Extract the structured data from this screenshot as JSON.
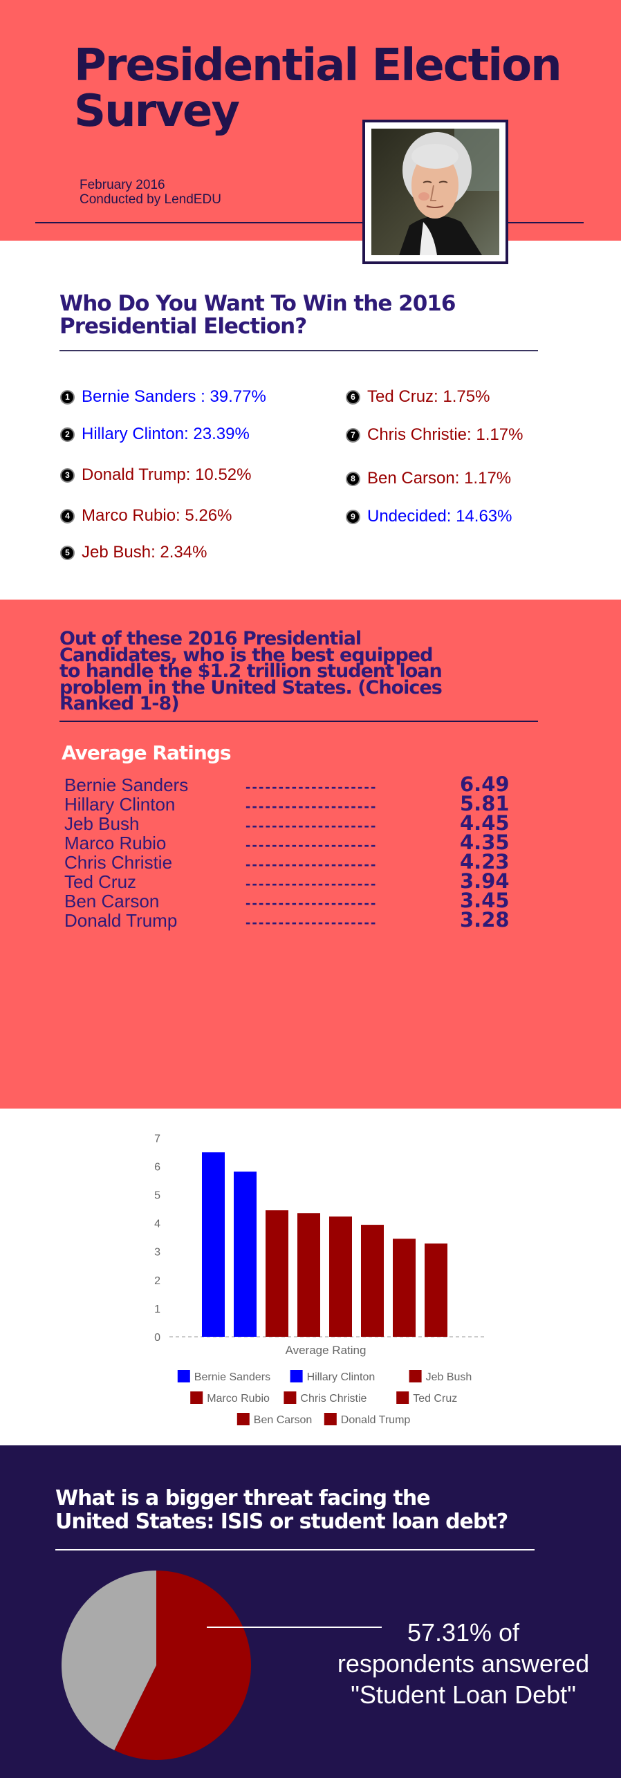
{
  "header": {
    "title_line1": "Presidential Election",
    "title_line2": "Survey",
    "date": "February 2016",
    "conducted_by": "Conducted by LendEDU"
  },
  "poll": {
    "question": "Who Do You Want To Win the 2016 Presidential Election?",
    "question_lines": [
      "Who Do You Want To Win the 2016",
      "Presidential Election?"
    ],
    "items": [
      {
        "n": "1",
        "text": "Bernie Sanders : 39.77%",
        "color": "#0000ff"
      },
      {
        "n": "2",
        "text": "Hillary Clinton: 23.39%",
        "color": "#0000ff"
      },
      {
        "n": "3",
        "text": "Donald Trump: 10.52%",
        "color": "#990000"
      },
      {
        "n": "4",
        "text": "Marco Rubio: 5.26%",
        "color": "#990000"
      },
      {
        "n": "5",
        "text": "Jeb Bush: 2.34%",
        "color": "#990000"
      },
      {
        "n": "6",
        "text": "Ted Cruz: 1.75%",
        "color": "#990000"
      },
      {
        "n": "7",
        "text": "Chris Christie: 1.17%",
        "color": "#990000"
      },
      {
        "n": "8",
        "text": "Ben Carson: 1.17%",
        "color": "#990000"
      },
      {
        "n": "9",
        "text": "Undecided: 14.63%",
        "color": "#0000ff"
      }
    ]
  },
  "ratings": {
    "question_lines": [
      "Out of these 2016 Presidential",
      "Candidates, who is the best equipped",
      "to handle the $1.2 trillion student loan",
      "problem in the United States. (Choices",
      "Ranked 1-8)"
    ],
    "heading": "Average Ratings",
    "leader": "--------------------",
    "rows": [
      {
        "name": "Bernie Sanders",
        "value": "6.49"
      },
      {
        "name": "Hillary Clinton",
        "value": "5.81"
      },
      {
        "name": "Jeb Bush",
        "value": "4.45"
      },
      {
        "name": "Marco Rubio",
        "value": "4.35"
      },
      {
        "name": "Chris Christie",
        "value": "4.23"
      },
      {
        "name": "Ted Cruz",
        "value": "3.94"
      },
      {
        "name": "Ben Carson",
        "value": "3.45"
      },
      {
        "name": "Donald Trump",
        "value": "3.28"
      }
    ]
  },
  "chart_data": [
    {
      "type": "bar",
      "xlabel": "Average Rating",
      "ylim": [
        0,
        7
      ],
      "yticks": [
        "0",
        "1",
        "2",
        "3",
        "4",
        "5",
        "6",
        "7"
      ],
      "grid": false,
      "legend": "bottom",
      "series": [
        {
          "name": "Bernie Sanders",
          "value": 6.49,
          "color": "#0000ff"
        },
        {
          "name": "Hillary Clinton",
          "value": 5.81,
          "color": "#0000ff"
        },
        {
          "name": "Jeb Bush",
          "value": 4.45,
          "color": "#990000"
        },
        {
          "name": "Marco Rubio",
          "value": 4.35,
          "color": "#990000"
        },
        {
          "name": "Chris Christie",
          "value": 4.23,
          "color": "#990000"
        },
        {
          "name": "Ted Cruz",
          "value": 3.94,
          "color": "#990000"
        },
        {
          "name": "Ben Carson",
          "value": 3.45,
          "color": "#990000"
        },
        {
          "name": "Donald Trump",
          "value": 3.28,
          "color": "#990000"
        }
      ]
    },
    {
      "type": "pie",
      "slices": [
        {
          "label": "Student Loan Debt",
          "value": 57.31,
          "color": "#990000"
        },
        {
          "label": "ISIS",
          "value": 42.69,
          "color": "#aaaaaa"
        }
      ]
    }
  ],
  "threat": {
    "question_lines": [
      "What is a bigger threat facing the",
      "United States: ISIS or student loan debt?"
    ],
    "callout_lines": [
      "57.31% of",
      "respondents answered",
      "\"Student Loan Debt\""
    ]
  },
  "colors": {
    "coral": "#ff6161",
    "navy": "#21134d",
    "blue": "#0000ff",
    "red": "#990000",
    "gray": "#aaaaaa"
  }
}
